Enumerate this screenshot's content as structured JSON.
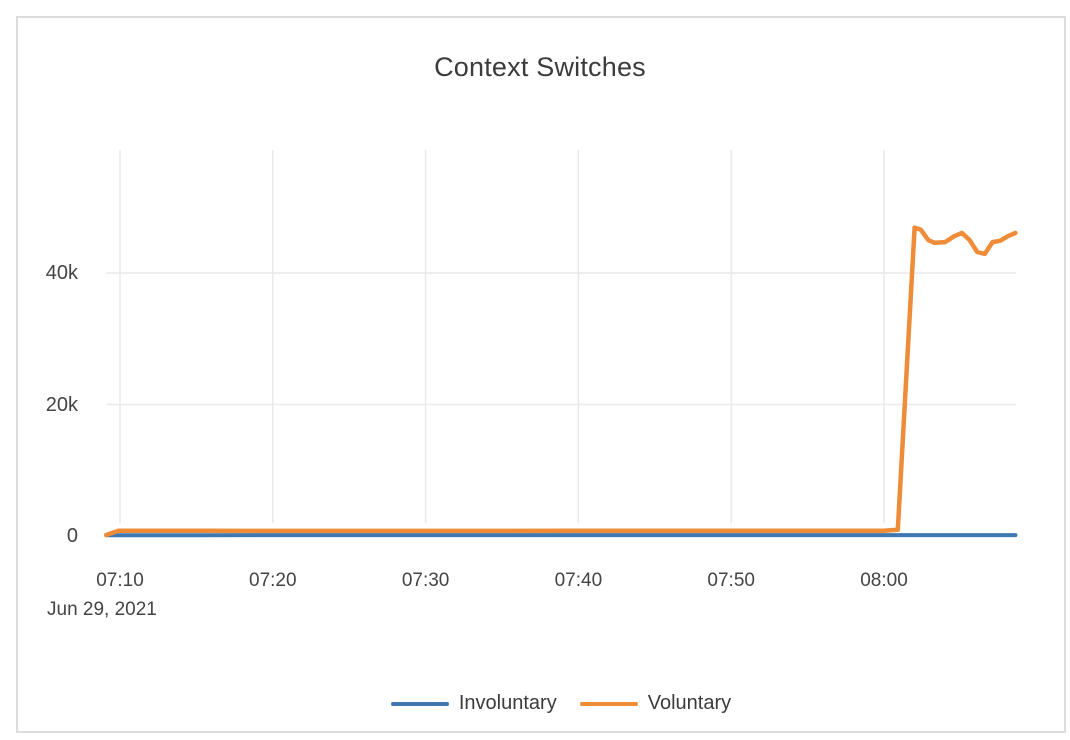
{
  "title": "Context Switches",
  "legend": {
    "items": [
      {
        "label": "Involuntary",
        "color": "#3f77b0"
      },
      {
        "label": "Voluntary",
        "color": "#ee8c38"
      }
    ]
  },
  "chart_data": {
    "type": "line",
    "title": "Context Switches",
    "grid": true,
    "legend_position": "bottom",
    "x_axis": {
      "date_label": "Jun 29, 2021",
      "unit": "time of day (minutes after 07:00), Jun 29, 2021",
      "domain_min": 69.1,
      "domain_max": 128.6,
      "ticks": [
        {
          "min": 70,
          "label": "07:10"
        },
        {
          "min": 80,
          "label": "07:20"
        },
        {
          "min": 90,
          "label": "07:30"
        },
        {
          "min": 100,
          "label": "07:40"
        },
        {
          "min": 110,
          "label": "07:50"
        },
        {
          "min": 120,
          "label": "08:00"
        }
      ]
    },
    "y_axis": {
      "range": [
        0,
        58500
      ],
      "ticks": [
        {
          "value": 0,
          "label": "0"
        },
        {
          "value": 20000,
          "label": "20k"
        },
        {
          "value": 40000,
          "label": "40k"
        }
      ]
    },
    "series": [
      {
        "name": "Involuntary",
        "color": "#3f77b0",
        "stroke_width": 4,
        "points": [
          [
            69.1,
            100
          ],
          [
            75,
            120
          ],
          [
            80,
            130
          ],
          [
            85,
            130
          ],
          [
            90,
            130
          ],
          [
            95,
            130
          ],
          [
            100,
            130
          ],
          [
            105,
            130
          ],
          [
            110,
            130
          ],
          [
            115,
            130
          ],
          [
            120,
            130
          ],
          [
            124,
            135
          ],
          [
            128.6,
            140
          ]
        ]
      },
      {
        "name": "Voluntary",
        "color": "#ee8c38",
        "stroke_width": 4.5,
        "points": [
          [
            69.1,
            150
          ],
          [
            69.9,
            800
          ],
          [
            75,
            790
          ],
          [
            80,
            780
          ],
          [
            85,
            780
          ],
          [
            90,
            780
          ],
          [
            95,
            780
          ],
          [
            100,
            785
          ],
          [
            105,
            785
          ],
          [
            110,
            790
          ],
          [
            115,
            790
          ],
          [
            120,
            800
          ],
          [
            120.9,
            950
          ],
          [
            122.0,
            46900
          ],
          [
            122.4,
            46600
          ],
          [
            122.9,
            45000
          ],
          [
            123.3,
            44600
          ],
          [
            124.0,
            44700
          ],
          [
            124.6,
            45600
          ],
          [
            125.1,
            46100
          ],
          [
            125.6,
            45000
          ],
          [
            126.1,
            43200
          ],
          [
            126.6,
            42900
          ],
          [
            127.1,
            44700
          ],
          [
            127.6,
            44900
          ],
          [
            128.1,
            45600
          ],
          [
            128.6,
            46100
          ]
        ]
      }
    ]
  }
}
